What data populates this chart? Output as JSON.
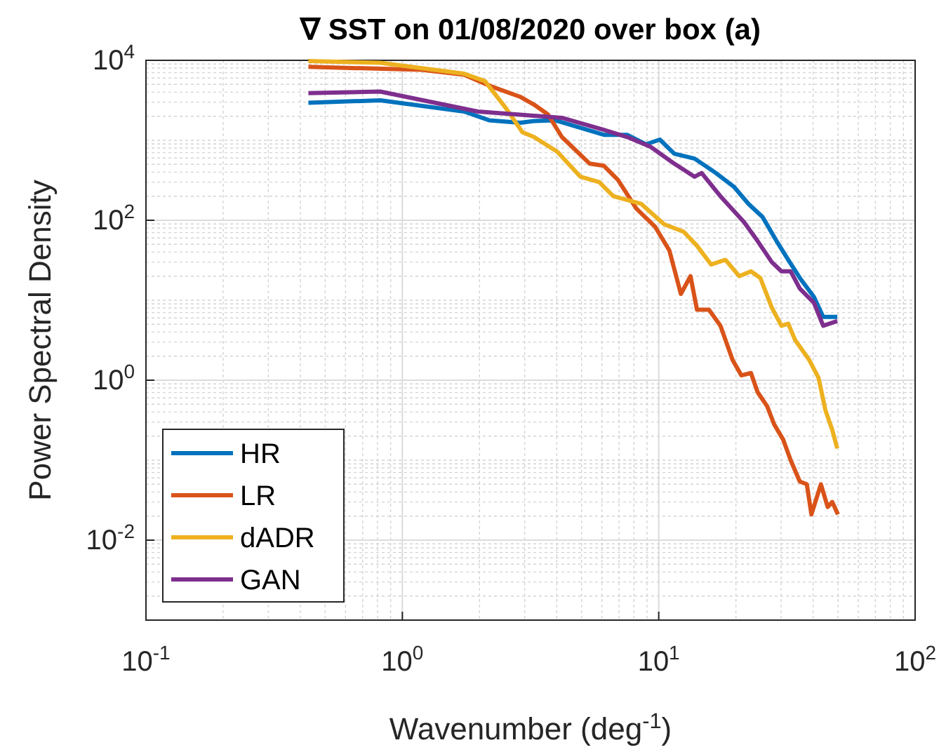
{
  "chart_data": {
    "type": "line",
    "title": "∇ SST on 01/08/2020 over box (a)",
    "xlabel": "Wavenumber (deg$^{-1}$)",
    "ylabel": "Power Spectral Density",
    "log": "xy",
    "grid": true,
    "legend": "bottom left",
    "line_style": "solid",
    "marker": "none",
    "xlim": [
      0.1,
      100
    ],
    "xticks": [
      {
        "value": 0.1,
        "label": "10$^{-1}$"
      },
      {
        "value": 1,
        "label": "10$^{0}$"
      },
      {
        "value": 10,
        "label": "10$^{1}$"
      },
      {
        "value": 100,
        "label": "10$^{2}$"
      }
    ],
    "ylim": [
      0.001,
      10000
    ],
    "yticks": [
      {
        "value": 0.01,
        "label": "10$^{-2}$"
      },
      {
        "value": 1,
        "label": "10$^{0}$"
      },
      {
        "value": 100,
        "label": "10$^{2}$"
      },
      {
        "value": 10000,
        "label": "10$^{4}$"
      }
    ],
    "series": [
      {
        "name": "HR",
        "color": "#0072bd",
        "x": [
          0.43,
          0.82,
          1.74,
          2.18,
          2.88,
          3.26,
          3.94,
          6.11,
          7.53,
          8.91,
          10.1,
          11.5,
          13.8,
          16.7,
          19.7,
          22.4,
          25.4,
          28.8,
          32.0,
          35.5,
          40.3,
          43.8,
          49.7
        ],
        "values": [
          2950,
          3160,
          2290,
          1780,
          1660,
          1740,
          1780,
          1170,
          1170,
          890,
          1020,
          680,
          590,
          390,
          260,
          160,
          110,
          55,
          32,
          19,
          11,
          6.2,
          6.2
        ]
      },
      {
        "name": "LR",
        "color": "#d95319",
        "x": [
          0.43,
          1.19,
          1.74,
          2.23,
          2.88,
          3.26,
          3.7,
          4.19,
          5.38,
          6.11,
          6.93,
          8.18,
          9.68,
          11.0,
          12.2,
          13.3,
          14.1,
          15.7,
          17.4,
          19.4,
          21.0,
          22.9,
          24.3,
          26.5,
          28.2,
          30.6,
          32.7,
          35.5,
          37.8,
          39.4,
          42.9,
          45.6,
          47.5,
          50.0
        ],
        "values": [
          8300,
          7600,
          6600,
          4700,
          3500,
          2800,
          2100,
          1100,
          510,
          480,
          320,
          140,
          83,
          42,
          12,
          20,
          7.6,
          7.6,
          4.8,
          1.8,
          1.15,
          1.23,
          0.71,
          0.47,
          0.28,
          0.18,
          0.1,
          0.054,
          0.05,
          0.021,
          0.05,
          0.026,
          0.03,
          0.021
        ]
      },
      {
        "name": "dADR",
        "color": "#edb120",
        "x": [
          0.43,
          0.82,
          1.74,
          2.1,
          2.54,
          2.94,
          3.26,
          4.02,
          4.95,
          5.86,
          6.65,
          8.55,
          10.5,
          12.5,
          14.1,
          16.0,
          18.2,
          20.6,
          22.9,
          24.9,
          27.6,
          30.1,
          32.0,
          34.0,
          38.6,
          42.0,
          44.7,
          47.5,
          49.7
        ],
        "values": [
          9800,
          9300,
          6800,
          5500,
          2500,
          1260,
          1100,
          720,
          350,
          300,
          200,
          160,
          89,
          72,
          48,
          28,
          32,
          20,
          23,
          19,
          8.1,
          4.8,
          5.1,
          3.2,
          1.8,
          1.07,
          0.42,
          0.24,
          0.14
        ]
      },
      {
        "name": "GAN",
        "color": "#7e2f8e",
        "x": [
          0.43,
          0.82,
          1.97,
          2.88,
          4.19,
          6.11,
          7.53,
          9.29,
          11.5,
          13.8,
          14.7,
          17.4,
          21.5,
          24.3,
          27.6,
          30.1,
          32.7,
          35.5,
          40.3,
          43.8,
          49.7
        ],
        "values": [
          3890,
          4070,
          2290,
          2090,
          1910,
          1350,
          1100,
          830,
          510,
          350,
          390,
          200,
          95,
          55,
          30,
          23,
          23,
          14,
          9.3,
          4.8,
          5.5
        ]
      }
    ]
  }
}
